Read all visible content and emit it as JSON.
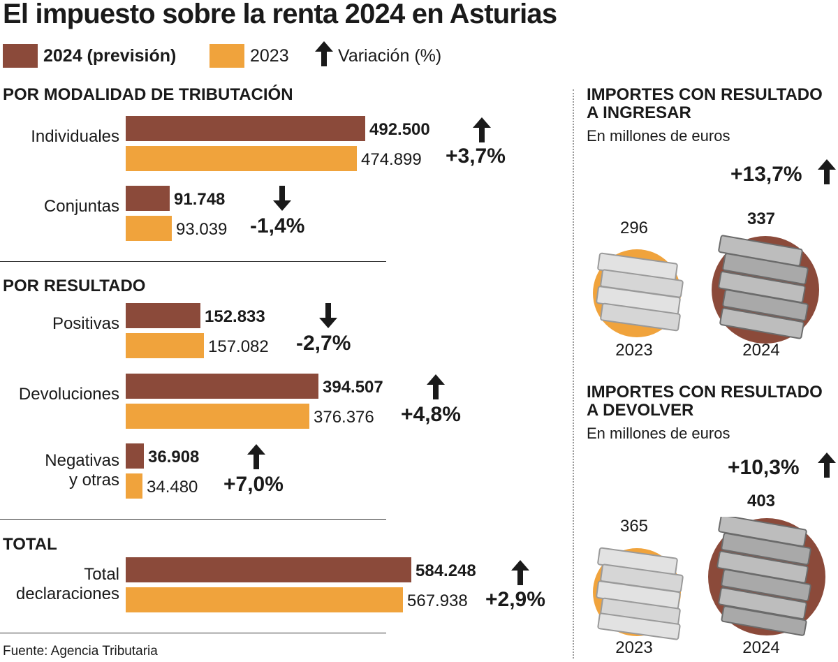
{
  "title": "El impuesto sobre la renta 2024 en Asturias",
  "colors": {
    "y2024": "#8b4a3a",
    "y2023": "#f0a33c",
    "text": "#1a1a1a",
    "stack": "#cfcfcf"
  },
  "legend": {
    "y2024_label": "2024 (previsión)",
    "y2023_label": "2023",
    "variation_label": "Variación (%)",
    "variation_icon": "up-arrow-icon"
  },
  "sections": {
    "modalidad": "POR MODALIDAD DE TRIBUTACIÓN",
    "resultado": "POR RESULTADO",
    "total": "TOTAL"
  },
  "categories": {
    "individuales": "Individuales",
    "conjuntas": "Conjuntas",
    "positivas": "Positivas",
    "devoluciones": "Devoluciones",
    "negativas_1": "Negativas",
    "negativas_2": "y otras",
    "total_1": "Total",
    "total_2": "declaraciones"
  },
  "values": {
    "individuales": {
      "v2024": "492.500",
      "v2023": "474.899",
      "pct": "+3,7%",
      "dir": "up"
    },
    "conjuntas": {
      "v2024": "91.748",
      "v2023": "93.039",
      "pct": "-1,4%",
      "dir": "down"
    },
    "positivas": {
      "v2024": "152.833",
      "v2023": "157.082",
      "pct": "-2,7%",
      "dir": "down"
    },
    "devoluciones": {
      "v2024": "394.507",
      "v2023": "376.376",
      "pct": "+4,8%",
      "dir": "up"
    },
    "negativas": {
      "v2024": "36.908",
      "v2023": "34.480",
      "pct": "+7,0%",
      "dir": "up"
    },
    "total": {
      "v2024": "584.248",
      "v2023": "567.938",
      "pct": "+2,9%",
      "dir": "up"
    }
  },
  "chart_data": [
    {
      "type": "bar",
      "orientation": "horizontal",
      "title": "POR MODALIDAD DE TRIBUTACIÓN",
      "categories": [
        "Individuales",
        "Conjuntas"
      ],
      "series": [
        {
          "name": "2024 (previsión)",
          "values": [
            492500,
            91748
          ]
        },
        {
          "name": "2023",
          "values": [
            474899,
            93039
          ]
        }
      ],
      "variation_pct": [
        3.7,
        -1.4
      ]
    },
    {
      "type": "bar",
      "orientation": "horizontal",
      "title": "POR RESULTADO",
      "categories": [
        "Positivas",
        "Devoluciones",
        "Negativas y otras"
      ],
      "series": [
        {
          "name": "2024 (previsión)",
          "values": [
            152833,
            394507,
            36908
          ]
        },
        {
          "name": "2023",
          "values": [
            157082,
            376376,
            34480
          ]
        }
      ],
      "variation_pct": [
        -2.7,
        4.8,
        7.0
      ]
    },
    {
      "type": "bar",
      "orientation": "horizontal",
      "title": "TOTAL",
      "categories": [
        "Total declaraciones"
      ],
      "series": [
        {
          "name": "2024 (previsión)",
          "values": [
            584248
          ]
        },
        {
          "name": "2023",
          "values": [
            567938
          ]
        }
      ],
      "variation_pct": [
        2.9
      ]
    },
    {
      "type": "bar",
      "title": "IMPORTES CON RESULTADO A INGRESAR",
      "unit": "En millones de euros",
      "categories": [
        "2023",
        "2024"
      ],
      "values": [
        296,
        337
      ],
      "variation_pct": 13.7
    },
    {
      "type": "bar",
      "title": "IMPORTES CON RESULTADO A DEVOLVER",
      "unit": "En millones de euros",
      "categories": [
        "2023",
        "2024"
      ],
      "values": [
        365,
        403
      ],
      "variation_pct": 10.3
    }
  ],
  "right": {
    "ingresar": {
      "title_1": "IMPORTES CON RESULTADO",
      "title_2": "A INGRESAR",
      "unit": "En millones de euros",
      "pct": "+13,7%",
      "v2023": "296",
      "v2024": "337",
      "year_a": "2023",
      "year_b": "2024"
    },
    "devolver": {
      "title_1": "IMPORTES CON RESULTADO",
      "title_2": "A DEVOLVER",
      "unit": "En millones de euros",
      "pct": "+10,3%",
      "v2023": "365",
      "v2024": "403",
      "year_a": "2023",
      "year_b": "2024"
    }
  },
  "source": "Fuente: Agencia Tributaria"
}
